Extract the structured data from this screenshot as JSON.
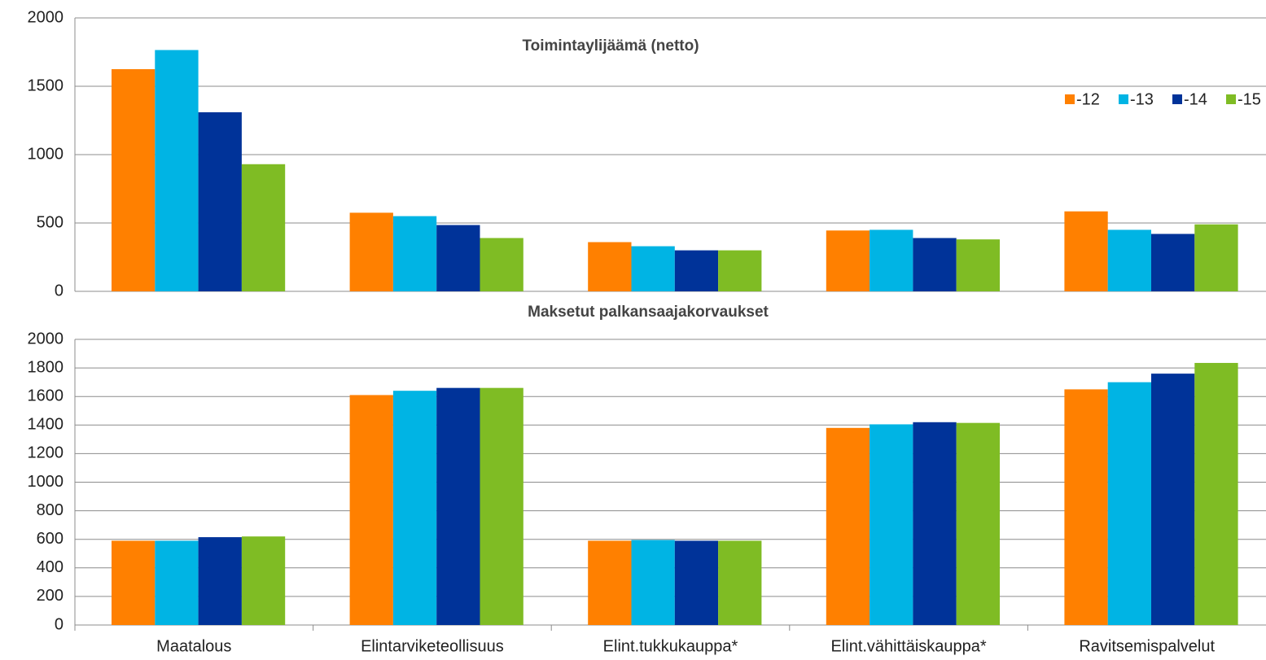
{
  "chart_data": [
    {
      "type": "bar",
      "title": "Toimintaylijäämä (netto)",
      "categories": [
        null,
        null,
        null,
        null,
        null
      ],
      "series": [
        {
          "name": "-12",
          "color": "#ff8000",
          "values": [
            1625,
            575,
            360,
            445,
            585
          ]
        },
        {
          "name": "-13",
          "color": "#00b4e4",
          "values": [
            1765,
            550,
            330,
            450,
            450
          ]
        },
        {
          "name": "-14",
          "color": "#003399",
          "values": [
            1310,
            485,
            300,
            390,
            420
          ]
        },
        {
          "name": "-15",
          "color": "#7fbc24",
          "values": [
            930,
            390,
            300,
            380,
            490
          ]
        }
      ],
      "ylim": [
        0,
        2000
      ],
      "yticks": [
        0,
        500,
        1000,
        1500,
        2000
      ],
      "grid": true,
      "legend": "top-right"
    },
    {
      "type": "bar",
      "title": "Maksetut palkansaajakorvaukset",
      "categories": [
        "Maatalous",
        "Elintarviketeollisuus",
        "Elint.tukkukauppa*",
        "Elint.vähittäiskauppa*",
        "Ravitsemispalvelut"
      ],
      "series": [
        {
          "color": "#ff8000",
          "values": [
            590,
            1610,
            590,
            1380,
            1650
          ]
        },
        {
          "color": "#00b4e4",
          "values": [
            590,
            1640,
            595,
            1405,
            1700
          ]
        },
        {
          "color": "#003399",
          "values": [
            615,
            1660,
            590,
            1420,
            1760
          ]
        },
        {
          "color": "#7fbc24",
          "values": [
            620,
            1660,
            590,
            1415,
            1835
          ]
        }
      ],
      "ylim": [
        0,
        2000
      ],
      "yticks": [
        0,
        200,
        400,
        600,
        800,
        1000,
        1200,
        1400,
        1600,
        1800,
        2000
      ],
      "grid": true
    }
  ]
}
